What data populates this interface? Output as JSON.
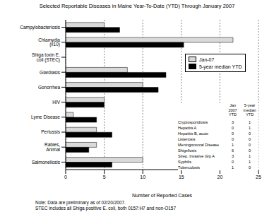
{
  "chart_data": {
    "type": "bar",
    "title": "Selected Reportable Diseases in Maine Year-To-Date (YTD) Through January 2007",
    "orientation": "horizontal",
    "categories": [
      "Campylobacteriosis",
      "Chlamydia (x10)",
      "Shiga toxin E. coli (STEC)",
      "Giardiasis",
      "Gonorrhea",
      "HIV",
      "Lyme Disease",
      "Pertussis",
      "Rabies, Animal",
      "Salmonellosis"
    ],
    "series": [
      {
        "name": "Jan-07",
        "color": "#d9d9d9",
        "values": [
          5,
          21.7,
          0,
          8,
          10,
          5,
          1,
          4,
          4,
          10
        ]
      },
      {
        "name": "5-year median YTD",
        "color": "#000000",
        "values": [
          7,
          15.3,
          0,
          13,
          12,
          5,
          4,
          6,
          3,
          6
        ]
      }
    ],
    "xlabel": "Number of Reported Cases",
    "xlim": [
      0,
      25
    ],
    "xticks": [
      0,
      5,
      10,
      15,
      20,
      25
    ],
    "grid": true,
    "legend": "right",
    "annotations": [
      "Note: Data are preliminary as of 02/20/2007.",
      "STEC includes all Shiga positive E. coli, both 0157:H7 and non-O157"
    ]
  },
  "table": {
    "header": [
      "Jan 2007 YTD",
      "5-year median YTD"
    ],
    "rows": [
      [
        "Cryptosporidiosis",
        3,
        1
      ],
      [
        "Hepatitis A",
        0,
        1
      ],
      [
        "Hepatitis B, acute",
        0,
        0
      ],
      [
        "Listeriosis",
        0,
        0
      ],
      [
        "Meningococcal Disease",
        1,
        0
      ],
      [
        "Shigellosis",
        6,
        0
      ],
      [
        "Strep, Invasive Grp A",
        3,
        1
      ],
      [
        "Syphilis",
        0,
        1
      ],
      [
        "Tuberculosis",
        1,
        0
      ]
    ]
  }
}
